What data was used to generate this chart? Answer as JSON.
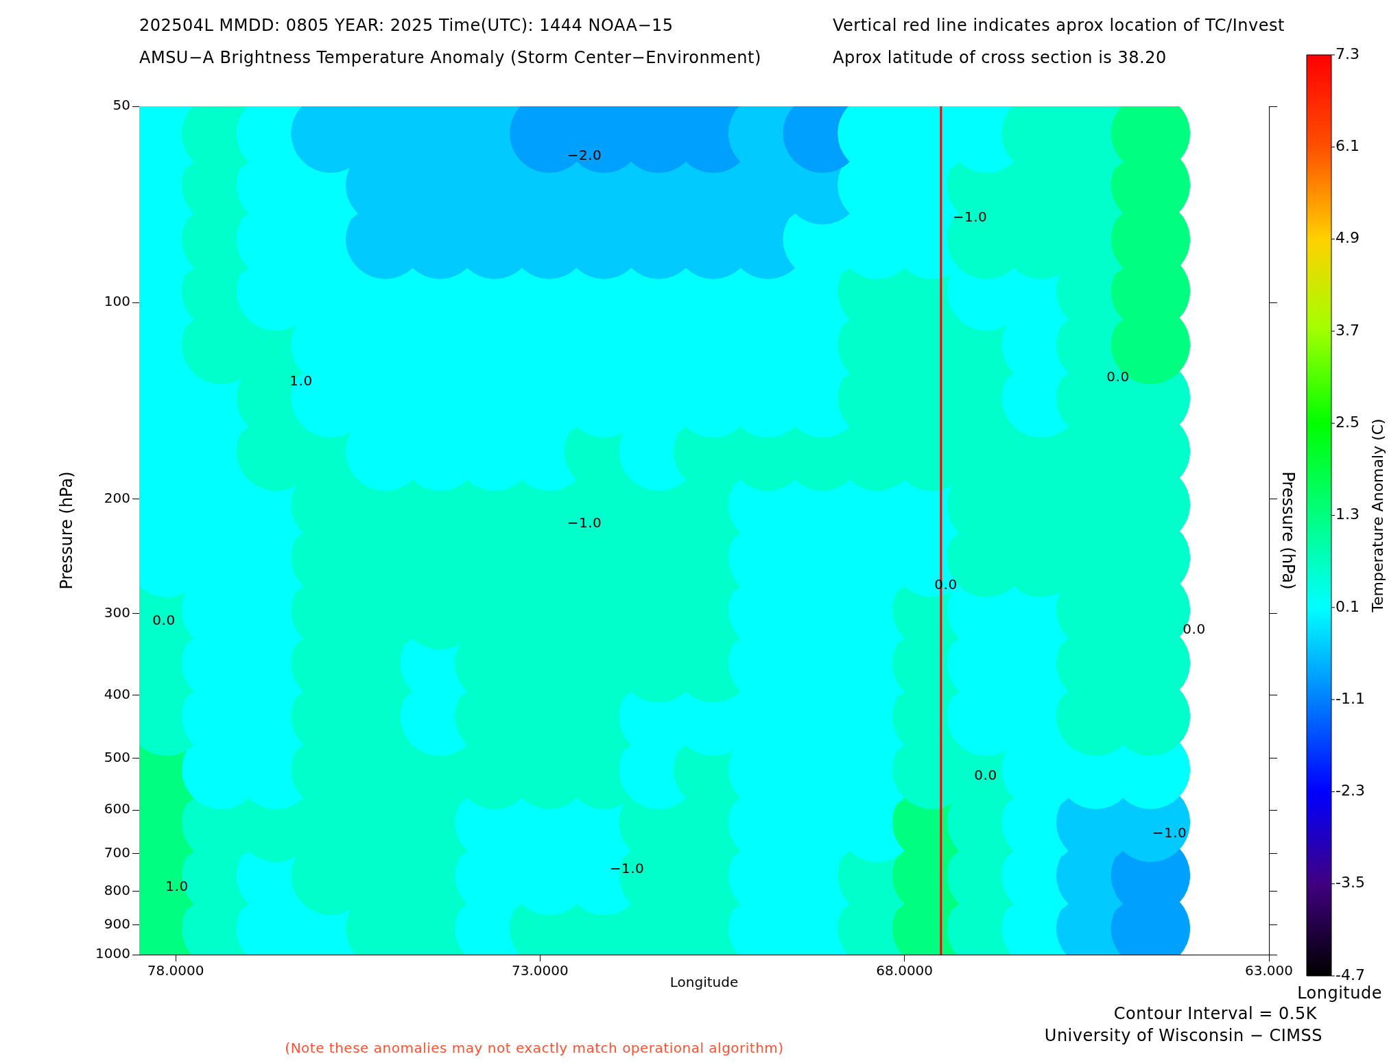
{
  "chart_data": {
    "type": "scatter",
    "marker": "circle",
    "title": "202504L  MMDD: 0805 YEAR: 2025 Time(UTC): 1444 NOAA−15",
    "subtitle": "AMSU−A Brightness Temperature Anomaly (Storm Center−Environment)",
    "xlabel": "Longitude",
    "ylabel": "Pressure (hPa)",
    "y2label": "Pressure (hPa)",
    "clabel": "Temperature Anomaly (C)",
    "annotations": [
      "Vertical red line indicates aprox location of TC/Invest",
      "Aprox latitude of cross section is 38.20",
      "Contour Interval = 0.5K",
      "Longitude",
      "University of Wisconsin − CIMSS",
      "(Note these anomalies may not exactly match operational algorithm)",
      "−2.0",
      "−1.0",
      "1.0",
      "0.0",
      "−1.0",
      "0.0",
      "0.0",
      "0.0",
      "0.0",
      "−1.0",
      "−1.0",
      "1.0"
    ],
    "x": [
      78.125,
      77.375,
      76.625,
      75.875,
      75.125,
      74.375,
      73.625,
      72.875,
      72.125,
      71.375,
      70.625,
      69.875,
      69.125,
      68.375,
      67.625,
      66.875,
      66.125,
      65.375,
      64.625
    ],
    "series": [
      {
        "values": [
          55,
          55,
          55,
          55,
          55,
          55,
          55,
          55,
          55,
          55,
          55,
          55,
          55,
          55,
          55,
          55,
          55,
          55,
          55
        ],
        "cvalues": [
          0.1,
          0.6,
          0.1,
          -0.4,
          -0.4,
          -0.4,
          -0.4,
          -0.8,
          -0.8,
          -0.8,
          -0.8,
          -0.4,
          -0.8,
          0.1,
          0.1,
          0.1,
          0.6,
          0.6,
          1.3
        ],
        "colors": [
          "#00ffff",
          "#00ffca",
          "#00ffff",
          "#00caff",
          "#00caff",
          "#00caff",
          "#00caff",
          "#00a0ff",
          "#00a0ff",
          "#00a0ff",
          "#00a0ff",
          "#00caff",
          "#00a0ff",
          "#00ffff",
          "#00ffff",
          "#00ffff",
          "#00ffca",
          "#00ffca",
          "#00ff80"
        ]
      },
      {
        "values": [
          66,
          66,
          66,
          66,
          66,
          66,
          66,
          66,
          66,
          66,
          66,
          66,
          66,
          66,
          66,
          66,
          66,
          66,
          66
        ],
        "cvalues": [
          0.1,
          0.6,
          0.1,
          0.1,
          -0.4,
          -0.4,
          -0.4,
          -0.4,
          -0.4,
          -0.4,
          -0.4,
          -0.4,
          -0.4,
          0.1,
          0.1,
          0.6,
          0.6,
          0.6,
          1.3
        ],
        "colors": [
          "#00ffff",
          "#00ffca",
          "#00ffff",
          "#00ffff",
          "#00caff",
          "#00caff",
          "#00caff",
          "#00caff",
          "#00caff",
          "#00caff",
          "#00caff",
          "#00caff",
          "#00caff",
          "#00ffff",
          "#00ffff",
          "#00ffca",
          "#00ffca",
          "#00ffca",
          "#00ff80"
        ]
      },
      {
        "values": [
          80,
          80,
          80,
          80,
          80,
          80,
          80,
          80,
          80,
          80,
          80,
          80,
          80,
          80,
          80,
          80,
          80,
          80,
          80
        ],
        "cvalues": [
          0.1,
          0.6,
          0.1,
          0.1,
          -0.4,
          -0.4,
          -0.4,
          -0.4,
          -0.4,
          -0.4,
          -0.4,
          -0.4,
          0.1,
          0.1,
          0.1,
          0.6,
          0.6,
          0.6,
          1.3
        ],
        "colors": [
          "#00ffff",
          "#00ffca",
          "#00ffff",
          "#00ffff",
          "#00caff",
          "#00caff",
          "#00caff",
          "#00caff",
          "#00caff",
          "#00caff",
          "#00caff",
          "#00caff",
          "#00ffff",
          "#00ffff",
          "#00ffff",
          "#00ffca",
          "#00ffca",
          "#00ffca",
          "#00ff80"
        ]
      },
      {
        "values": [
          96,
          96,
          96,
          96,
          96,
          96,
          96,
          96,
          96,
          96,
          96,
          96,
          96,
          96,
          96,
          96,
          96,
          96,
          96
        ],
        "cvalues": [
          0.1,
          0.6,
          0.1,
          0.1,
          0.1,
          0.1,
          0.1,
          0.1,
          0.1,
          0.1,
          0.1,
          0.1,
          0.1,
          0.6,
          0.6,
          0.1,
          0.1,
          0.6,
          1.3
        ],
        "colors": [
          "#00ffff",
          "#00ffca",
          "#00ffff",
          "#00ffff",
          "#00ffff",
          "#00ffff",
          "#00ffff",
          "#00ffff",
          "#00ffff",
          "#00ffff",
          "#00ffff",
          "#00ffff",
          "#00ffff",
          "#00ffca",
          "#00ffca",
          "#00ffff",
          "#00ffff",
          "#00ffca",
          "#00ff80"
        ]
      },
      {
        "values": [
          116,
          116,
          116,
          116,
          116,
          116,
          116,
          116,
          116,
          116,
          116,
          116,
          116,
          116,
          116,
          116,
          116,
          116,
          116
        ],
        "cvalues": [
          0.1,
          0.6,
          0.6,
          0.1,
          0.1,
          0.1,
          0.1,
          0.1,
          0.1,
          0.1,
          0.1,
          0.1,
          0.1,
          0.6,
          0.6,
          0.6,
          0.1,
          0.6,
          1.3
        ],
        "colors": [
          "#00ffff",
          "#00ffca",
          "#00ffca",
          "#00ffff",
          "#00ffff",
          "#00ffff",
          "#00ffff",
          "#00ffff",
          "#00ffff",
          "#00ffff",
          "#00ffff",
          "#00ffff",
          "#00ffff",
          "#00ffca",
          "#00ffca",
          "#00ffca",
          "#00ffff",
          "#00ffca",
          "#00ff80"
        ]
      },
      {
        "values": [
          140,
          140,
          140,
          140,
          140,
          140,
          140,
          140,
          140,
          140,
          140,
          140,
          140,
          140,
          140,
          140,
          140,
          140,
          140
        ],
        "cvalues": [
          0.1,
          0.1,
          0.6,
          0.1,
          0.1,
          0.1,
          0.1,
          0.1,
          0.1,
          0.1,
          0.1,
          0.1,
          0.1,
          0.6,
          0.6,
          0.6,
          0.1,
          0.6,
          0.6
        ],
        "colors": [
          "#00ffff",
          "#00ffff",
          "#00ffca",
          "#00ffff",
          "#00ffff",
          "#00ffff",
          "#00ffff",
          "#00ffff",
          "#00ffff",
          "#00ffff",
          "#00ffff",
          "#00ffff",
          "#00ffff",
          "#00ffca",
          "#00ffca",
          "#00ffca",
          "#00ffff",
          "#00ffca",
          "#00ffca"
        ]
      },
      {
        "values": [
          169,
          169,
          169,
          169,
          169,
          169,
          169,
          169,
          169,
          169,
          169,
          169,
          169,
          169,
          169,
          169,
          169,
          169,
          169
        ],
        "cvalues": [
          0.1,
          0.1,
          0.6,
          0.6,
          0.1,
          0.1,
          0.1,
          0.1,
          0.6,
          0.1,
          0.6,
          0.6,
          0.6,
          0.6,
          0.6,
          0.6,
          0.6,
          0.6,
          0.6
        ],
        "colors": [
          "#00ffff",
          "#00ffff",
          "#00ffca",
          "#00ffca",
          "#00ffff",
          "#00ffff",
          "#00ffff",
          "#00ffff",
          "#00ffca",
          "#00ffff",
          "#00ffca",
          "#00ffca",
          "#00ffca",
          "#00ffca",
          "#00ffca",
          "#00ffca",
          "#00ffca",
          "#00ffca",
          "#00ffca"
        ]
      },
      {
        "values": [
          204,
          204,
          204,
          204,
          204,
          204,
          204,
          204,
          204,
          204,
          204,
          204,
          204,
          204,
          204,
          204,
          204,
          204,
          204
        ],
        "cvalues": [
          0.1,
          0.1,
          0.1,
          0.6,
          0.6,
          0.6,
          0.6,
          0.6,
          0.6,
          0.6,
          0.6,
          0.1,
          0.1,
          0.1,
          0.1,
          0.6,
          0.6,
          0.6,
          0.6
        ],
        "colors": [
          "#00ffff",
          "#00ffff",
          "#00ffff",
          "#00ffca",
          "#00ffca",
          "#00ffca",
          "#00ffca",
          "#00ffca",
          "#00ffca",
          "#00ffca",
          "#00ffca",
          "#00ffff",
          "#00ffff",
          "#00ffff",
          "#00ffff",
          "#00ffca",
          "#00ffca",
          "#00ffca",
          "#00ffca"
        ]
      },
      {
        "values": [
          246,
          246,
          246,
          246,
          246,
          246,
          246,
          246,
          246,
          246,
          246,
          246,
          246,
          246,
          246,
          246,
          246,
          246,
          246
        ],
        "cvalues": [
          0.1,
          0.1,
          0.1,
          0.6,
          0.6,
          0.6,
          0.6,
          0.6,
          0.6,
          0.6,
          0.6,
          0.1,
          0.1,
          0.1,
          0.1,
          0.6,
          0.6,
          0.6,
          0.6
        ],
        "colors": [
          "#00ffff",
          "#00ffff",
          "#00ffff",
          "#00ffca",
          "#00ffca",
          "#00ffca",
          "#00ffca",
          "#00ffca",
          "#00ffca",
          "#00ffca",
          "#00ffca",
          "#00ffff",
          "#00ffff",
          "#00ffff",
          "#00ffff",
          "#00ffca",
          "#00ffca",
          "#00ffca",
          "#00ffca"
        ]
      },
      {
        "values": [
          296,
          296,
          296,
          296,
          296,
          296,
          296,
          296,
          296,
          296,
          296,
          296,
          296,
          296,
          296,
          296,
          296,
          296,
          296
        ],
        "cvalues": [
          0.6,
          0.1,
          0.1,
          0.6,
          0.6,
          0.6,
          0.6,
          0.6,
          0.6,
          0.6,
          0.6,
          0.1,
          0.1,
          0.1,
          0.6,
          0.1,
          0.1,
          0.6,
          0.6
        ],
        "colors": [
          "#00ffca",
          "#00ffff",
          "#00ffff",
          "#00ffca",
          "#00ffca",
          "#00ffca",
          "#00ffca",
          "#00ffca",
          "#00ffca",
          "#00ffca",
          "#00ffca",
          "#00ffff",
          "#00ffff",
          "#00ffff",
          "#00ffca",
          "#00ffff",
          "#00ffff",
          "#00ffca",
          "#00ffca"
        ]
      },
      {
        "values": [
          357,
          357,
          357,
          357,
          357,
          357,
          357,
          357,
          357,
          357,
          357,
          357,
          357,
          357,
          357,
          357,
          357,
          357,
          357
        ],
        "cvalues": [
          0.6,
          0.1,
          0.1,
          0.6,
          0.6,
          0.1,
          0.6,
          0.6,
          0.6,
          0.6,
          0.6,
          0.1,
          0.1,
          0.1,
          0.6,
          0.1,
          0.1,
          0.6,
          0.6
        ],
        "colors": [
          "#00ffca",
          "#00ffff",
          "#00ffff",
          "#00ffca",
          "#00ffca",
          "#00ffff",
          "#00ffca",
          "#00ffca",
          "#00ffca",
          "#00ffca",
          "#00ffca",
          "#00ffff",
          "#00ffff",
          "#00ffff",
          "#00ffca",
          "#00ffff",
          "#00ffff",
          "#00ffca",
          "#00ffca"
        ]
      },
      {
        "values": [
          431,
          431,
          431,
          431,
          431,
          431,
          431,
          431,
          431,
          431,
          431,
          431,
          431,
          431,
          431,
          431,
          431,
          431,
          431
        ],
        "cvalues": [
          0.6,
          0.1,
          0.1,
          0.6,
          0.6,
          0.1,
          0.6,
          0.6,
          0.6,
          0.1,
          0.1,
          0.1,
          0.1,
          0.1,
          0.6,
          0.1,
          0.1,
          0.6,
          0.6
        ],
        "colors": [
          "#00ffca",
          "#00ffff",
          "#00ffff",
          "#00ffca",
          "#00ffca",
          "#00ffff",
          "#00ffca",
          "#00ffca",
          "#00ffca",
          "#00ffff",
          "#00ffff",
          "#00ffff",
          "#00ffff",
          "#00ffff",
          "#00ffca",
          "#00ffff",
          "#00ffff",
          "#00ffca",
          "#00ffca"
        ]
      },
      {
        "values": [
          520,
          520,
          520,
          520,
          520,
          520,
          520,
          520,
          520,
          520,
          520,
          520,
          520,
          520,
          520,
          520,
          520,
          520,
          520
        ],
        "cvalues": [
          1.3,
          0.1,
          0.1,
          0.6,
          0.6,
          0.6,
          0.6,
          0.6,
          0.6,
          0.1,
          0.6,
          0.1,
          0.1,
          0.1,
          0.6,
          0.6,
          0.1,
          0.1,
          0.1
        ],
        "colors": [
          "#00ff80",
          "#00ffff",
          "#00ffff",
          "#00ffca",
          "#00ffca",
          "#00ffca",
          "#00ffca",
          "#00ffca",
          "#00ffca",
          "#00ffff",
          "#00ffca",
          "#00ffff",
          "#00ffff",
          "#00ffff",
          "#00ffca",
          "#00ffca",
          "#00ffff",
          "#00ffff",
          "#00ffff"
        ]
      },
      {
        "values": [
          627,
          627,
          627,
          627,
          627,
          627,
          627,
          627,
          627,
          627,
          627,
          627,
          627,
          627,
          627,
          627,
          627,
          627,
          627
        ],
        "cvalues": [
          1.3,
          0.6,
          0.6,
          0.6,
          0.6,
          0.6,
          0.1,
          0.1,
          0.1,
          0.6,
          0.6,
          0.1,
          0.1,
          0.1,
          1.3,
          0.6,
          0.1,
          -0.4,
          -0.4
        ],
        "colors": [
          "#00ff80",
          "#00ffca",
          "#00ffca",
          "#00ffca",
          "#00ffca",
          "#00ffca",
          "#00ffff",
          "#00ffff",
          "#00ffff",
          "#00ffca",
          "#00ffca",
          "#00ffff",
          "#00ffff",
          "#00ffff",
          "#00ff80",
          "#00ffca",
          "#00ffff",
          "#00caff",
          "#00caff"
        ]
      },
      {
        "values": [
          756,
          756,
          756,
          756,
          756,
          756,
          756,
          756,
          756,
          756,
          756,
          756,
          756,
          756,
          756,
          756,
          756,
          756,
          756
        ],
        "cvalues": [
          1.3,
          0.6,
          0.1,
          0.6,
          0.6,
          0.6,
          0.1,
          0.1,
          0.1,
          0.6,
          0.6,
          0.1,
          0.1,
          0.6,
          1.3,
          0.6,
          0.1,
          -0.4,
          -0.8
        ],
        "colors": [
          "#00ff80",
          "#00ffca",
          "#00ffff",
          "#00ffca",
          "#00ffca",
          "#00ffca",
          "#00ffff",
          "#00ffff",
          "#00ffff",
          "#00ffca",
          "#00ffca",
          "#00ffff",
          "#00ffff",
          "#00ffca",
          "#00ff80",
          "#00ffca",
          "#00ffff",
          "#00caff",
          "#00a0ff"
        ]
      },
      {
        "values": [
          912,
          912,
          912,
          912,
          912,
          912,
          912,
          912,
          912,
          912,
          912,
          912,
          912,
          912,
          912,
          912,
          912,
          912,
          912
        ],
        "cvalues": [
          1.3,
          0.6,
          0.1,
          0.1,
          0.6,
          0.6,
          0.1,
          0.6,
          0.6,
          0.6,
          0.6,
          0.1,
          0.1,
          0.6,
          1.3,
          0.6,
          0.1,
          -0.4,
          -0.8
        ],
        "colors": [
          "#00ff80",
          "#00ffca",
          "#00ffff",
          "#00ffff",
          "#00ffca",
          "#00ffca",
          "#00ffff",
          "#00ffca",
          "#00ffca",
          "#00ffca",
          "#00ffca",
          "#00ffff",
          "#00ffff",
          "#00ffca",
          "#00ff80",
          "#00ffca",
          "#00ffff",
          "#00caff",
          "#00a0ff"
        ]
      }
    ],
    "clim": [
      -4.7,
      7.3
    ],
    "cticks": [
      -4.7,
      -3.5,
      -2.3,
      -1.1,
      0.1,
      1.3,
      2.5,
      3.7,
      4.9,
      6.1,
      7.3
    ],
    "xlim": [
      78.5,
      63
    ],
    "xticks": [
      {
        "value": 78,
        "label": "78.0000"
      },
      {
        "value": 73,
        "label": "73.0000"
      },
      {
        "value": 68,
        "label": "68.0000"
      },
      {
        "value": 63,
        "label": "63.000"
      }
    ],
    "ylim": [
      1000,
      50
    ],
    "yticks": [
      50,
      100,
      200,
      300,
      400,
      500,
      600,
      700,
      800,
      900,
      1000
    ],
    "log": "y",
    "ref_lines": [
      {
        "axis": "x",
        "value": 67.5,
        "color": "#ff0000"
      }
    ]
  }
}
